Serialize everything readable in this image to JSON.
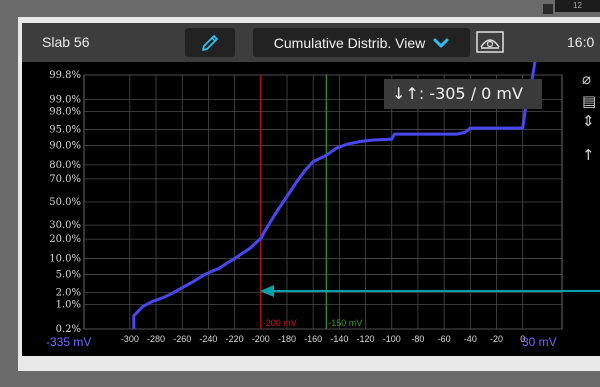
{
  "topbar": {
    "title": "Slab 56",
    "view_label": "Cumulative Distrib. View",
    "time": "16:0",
    "corner_text": "12"
  },
  "icons": {
    "edit": "pencil-icon",
    "dropdown": "chevron-down-icon",
    "probe": "probe-icon"
  },
  "cursor_readout": "↓↑: -305 / 0 mV",
  "side_tools": [
    "⌀",
    "▤",
    "⇕",
    "↑"
  ],
  "colors": {
    "accent": "#2fc0f0",
    "curve": "#4848f0",
    "cursor_red": "#c01818",
    "cursor_green": "#28a028",
    "arrow": "#00a0a8"
  },
  "chart_data": {
    "type": "line",
    "title": "",
    "xlabel": "",
    "ylabel": "",
    "x_range_labels": [
      "-335 mV",
      "30 mV"
    ],
    "xlim": [
      -335,
      30
    ],
    "x_ticks": [
      -300,
      -280,
      -260,
      -240,
      -220,
      -200,
      -180,
      -160,
      -140,
      -120,
      -100,
      -80,
      -60,
      -40,
      -20,
      0
    ],
    "y_scale": "normal-probability",
    "y_ticks": [
      "99.8%",
      "99.0%",
      "98.0%",
      "95.0%",
      "90.0%",
      "80.0%",
      "70.0%",
      "50.0%",
      "30.0%",
      "20.0%",
      "10.0%",
      "5.0%",
      "2.0%",
      "1.0%",
      "0.2%"
    ],
    "y_tick_values": [
      99.8,
      99.0,
      98.0,
      95.0,
      90.0,
      80.0,
      70.0,
      50.0,
      30.0,
      20.0,
      10.0,
      5.0,
      2.0,
      1.0,
      0.2
    ],
    "grid": true,
    "series": [
      {
        "x": [
          -297,
          -297,
          -290,
          -283,
          -275,
          -268,
          -260,
          -252,
          -244,
          -238,
          -232,
          -226,
          -220,
          -214,
          -208,
          -204,
          -200,
          -196,
          -190,
          -184,
          -178,
          -172,
          -166,
          -160,
          -150,
          -142,
          -134,
          -124,
          -114,
          -104,
          -100,
          -98,
          -90,
          -80,
          -70,
          -60,
          -50,
          -44,
          -40,
          -30,
          -20,
          -10,
          0,
          2,
          6,
          10
        ],
        "y": [
          0.2,
          0.5,
          0.9,
          1.2,
          1.5,
          1.9,
          2.6,
          3.5,
          4.8,
          5.7,
          6.6,
          8.2,
          10.0,
          12.3,
          14.8,
          17.6,
          20.5,
          27.0,
          37.5,
          48.0,
          58.5,
          68.5,
          76.5,
          82.0,
          85.5,
          89.0,
          90.5,
          91.5,
          92.0,
          92.2,
          92.3,
          93.8,
          93.8,
          93.8,
          93.8,
          93.8,
          93.8,
          94.3,
          95.3,
          95.3,
          95.3,
          95.3,
          95.3,
          98.2,
          99.5,
          99.95
        ]
      }
    ],
    "cursors": [
      {
        "x": -200,
        "label": "-200 mV",
        "color": "#c01818"
      },
      {
        "x": -150,
        "label": "-150 mV",
        "color": "#28a028"
      }
    ]
  }
}
